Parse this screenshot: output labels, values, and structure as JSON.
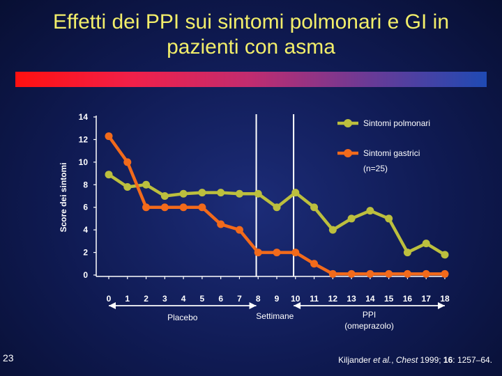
{
  "slide": {
    "title_line1": "Effetti dei PPI sui sintomi polmonari e GI in",
    "title_line2": "pazienti con asma",
    "slide_number": "23",
    "citation": {
      "authors": "Kiljander ",
      "et_al": "et al.",
      "sep1": ", ",
      "journal": "Chest",
      "year": " 1999; ",
      "volume": "16",
      "pages": ": 1257–64."
    }
  },
  "colors": {
    "pulmonary": "#bcbf3e",
    "gastric": "#f26a1b",
    "title": "#f2ee6a",
    "axes": "#ffffff"
  },
  "chart_data": {
    "type": "line",
    "title": "",
    "xlabel": "Settimane",
    "ylabel": "Score dei sintomi",
    "categories": [
      "0",
      "1",
      "2",
      "3",
      "4",
      "5",
      "6",
      "7",
      "8",
      "9",
      "10",
      "11",
      "12",
      "13",
      "14",
      "15",
      "16",
      "17",
      "18"
    ],
    "yticks": [
      "0",
      "2",
      "4",
      "6",
      "8",
      "10",
      "12",
      "14"
    ],
    "ylim": [
      0,
      14
    ],
    "xlim": [
      0,
      18
    ],
    "series": [
      {
        "name": "Sintomi  polmonari",
        "color": "#bcbf3e",
        "x": [
          0,
          1,
          2,
          3,
          4,
          5,
          6,
          7,
          8,
          9,
          10,
          11,
          12,
          13,
          14,
          15,
          16,
          17,
          18
        ],
        "values": [
          8.9,
          7.8,
          8.0,
          7.0,
          7.2,
          7.3,
          7.3,
          7.2,
          7.2,
          6.0,
          7.3,
          6.0,
          4.0,
          5.0,
          5.7,
          5.0,
          2.0,
          2.8,
          1.8
        ]
      },
      {
        "name": "Sintomi gastrici",
        "color": "#f26a1b",
        "x": [
          0,
          1,
          2,
          3,
          4,
          5,
          6,
          7,
          8,
          9,
          10,
          11,
          12,
          13,
          14,
          15,
          16,
          17,
          18
        ],
        "values": [
          12.3,
          10.0,
          6.0,
          6.0,
          6.0,
          6.0,
          4.5,
          4.0,
          2.0,
          2.0,
          2.0,
          1.0,
          0.1,
          0.1,
          0.1,
          0.1,
          0.1,
          0.1,
          0.1
        ]
      }
    ],
    "legend_note": "(n=25)",
    "phase_markers": [
      7.9,
      9.9
    ],
    "phases": {
      "placebo": "Placebo",
      "weeks": "Settimane",
      "ppi_line1": "PPI",
      "ppi_line2": "(omeprazolo)"
    },
    "legend_position": "top-right"
  }
}
